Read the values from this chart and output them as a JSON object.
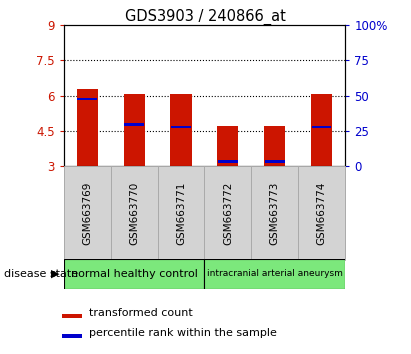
{
  "title": "GDS3903 / 240866_at",
  "samples": [
    "GSM663769",
    "GSM663770",
    "GSM663771",
    "GSM663772",
    "GSM663773",
    "GSM663774"
  ],
  "bar_tops": [
    6.3,
    6.07,
    6.05,
    4.7,
    4.72,
    6.05
  ],
  "bar_bottom": 3.0,
  "blue_marker_positions": [
    5.85,
    4.78,
    4.68,
    3.2,
    3.2,
    4.68
  ],
  "ylim_left": [
    3,
    9
  ],
  "ylim_right": [
    0,
    100
  ],
  "yticks_left": [
    3,
    4.5,
    6,
    7.5,
    9
  ],
  "yticks_right": [
    0,
    25,
    50,
    75,
    100
  ],
  "ytick_labels_left": [
    "3",
    "4.5",
    "6",
    "7.5",
    "9"
  ],
  "ytick_labels_right": [
    "0",
    "25",
    "50",
    "75",
    "100%"
  ],
  "grid_lines": [
    4.5,
    6.0,
    7.5
  ],
  "bar_color": "#cc1500",
  "blue_color": "#0000cc",
  "group1_label": "normal healthy control",
  "group2_label": "intracranial arterial aneurysm",
  "group1_color": "#7ce87c",
  "group2_color": "#7ce87c",
  "disease_state_label": "disease state",
  "legend_red_label": "transformed count",
  "legend_blue_label": "percentile rank within the sample",
  "bar_width": 0.45,
  "ylabel_left_color": "#cc1500",
  "ylabel_right_color": "#0000cc",
  "tick_label_box_color": "#d3d3d3",
  "tick_label_box_edge": "#aaaaaa"
}
